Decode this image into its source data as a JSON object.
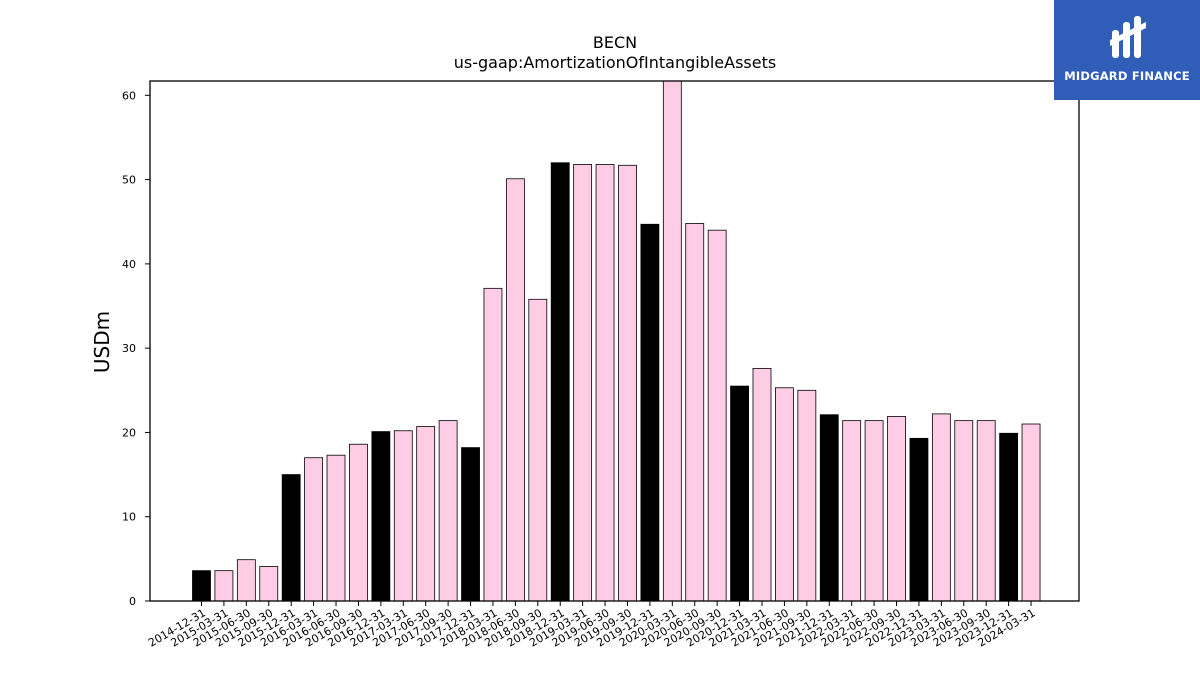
{
  "chart_data": {
    "type": "bar",
    "title": "BECN",
    "subtitle": "us-gaap:AmortizationOfIntangibleAssets",
    "xlabel": "",
    "ylabel": "USDm",
    "ylim": [
      0,
      61.7
    ],
    "yticks": [
      0,
      10,
      20,
      30,
      40,
      50,
      60
    ],
    "grid": false,
    "colors": {
      "quarterly": "#ffcce6",
      "annual": "#000000",
      "edge": "#000000"
    },
    "categories": [
      "2014-12-31",
      "2015-03-31",
      "2015-06-30",
      "2015-09-30",
      "2015-12-31",
      "2016-03-31",
      "2016-06-30",
      "2016-09-30",
      "2016-12-31",
      "2017-03-31",
      "2017-06-30",
      "2017-09-30",
      "2017-12-31",
      "2018-03-31",
      "2018-06-30",
      "2018-09-30",
      "2018-12-31",
      "2019-03-31",
      "2019-06-30",
      "2019-09-30",
      "2019-12-31",
      "2020-03-31",
      "2020-06-30",
      "2020-09-30",
      "2020-12-31",
      "2021-03-31",
      "2021-06-30",
      "2021-09-30",
      "2021-12-31",
      "2022-03-31",
      "2022-06-30",
      "2022-09-30",
      "2022-12-31",
      "2023-03-31",
      "2023-06-30",
      "2023-09-30",
      "2023-12-31",
      "2024-03-31"
    ],
    "values": [
      3.6,
      3.6,
      4.9,
      4.1,
      15.0,
      17.0,
      17.3,
      18.6,
      20.1,
      20.2,
      20.7,
      21.4,
      18.2,
      37.1,
      50.1,
      35.8,
      52.0,
      51.8,
      51.8,
      51.7,
      44.7,
      61.7,
      44.8,
      44.0,
      25.5,
      27.6,
      25.3,
      25.0,
      22.1,
      21.4,
      21.4,
      21.9,
      19.3,
      22.2,
      21.4,
      21.4,
      19.9,
      21.0
    ],
    "annual_flags": [
      true,
      false,
      false,
      false,
      true,
      false,
      false,
      false,
      true,
      false,
      false,
      false,
      true,
      false,
      false,
      false,
      true,
      false,
      false,
      false,
      true,
      false,
      false,
      false,
      true,
      false,
      false,
      false,
      true,
      false,
      false,
      false,
      true,
      false,
      false,
      false,
      true,
      false
    ]
  },
  "logo": {
    "text": "MIDGARD FINANCE",
    "color": "#2f5db8"
  }
}
